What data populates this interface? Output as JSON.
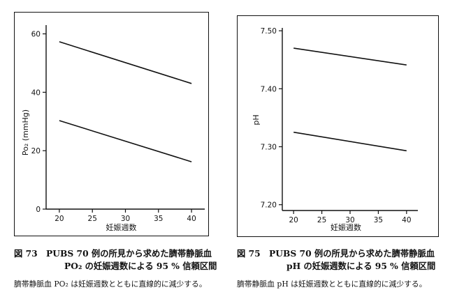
{
  "chart_data": [
    {
      "type": "line",
      "ylabel": "Po₂ (mmHg)",
      "xlabel": "妊娠週数",
      "x_ticks": [
        "20",
        "25",
        "30",
        "35",
        "40"
      ],
      "y_ticks": [
        "0",
        "20",
        "40",
        "60"
      ],
      "xlim": [
        18,
        42
      ],
      "ylim": [
        0,
        63
      ],
      "series": [
        {
          "x": [
            20,
            40
          ],
          "y": [
            57.3,
            43.0
          ]
        },
        {
          "x": [
            20,
            40
          ],
          "y": [
            30.3,
            16.2
          ]
        }
      ],
      "caption_line1": "図 73　PUBS 70 例の所見から求めた臍帯静脈血",
      "caption_line2": "PO₂ の妊娠週数による 95 % 信頼区間",
      "note": "臍帯静脈血 PO₂ は妊娠週数とともに直線的に減少する。"
    },
    {
      "type": "line",
      "ylabel": "pH",
      "xlabel": "妊娠週数",
      "x_ticks": [
        "20",
        "25",
        "30",
        "35",
        "40"
      ],
      "y_ticks": [
        "7.20",
        "7.30",
        "7.40",
        "7.50"
      ],
      "xlim": [
        18,
        42
      ],
      "ylim": [
        7.19,
        7.505
      ],
      "series": [
        {
          "x": [
            20,
            40
          ],
          "y": [
            7.47,
            7.441
          ]
        },
        {
          "x": [
            20,
            40
          ],
          "y": [
            7.325,
            7.293
          ]
        }
      ],
      "caption_line1": "図 75　PUBS 70 例の所見から求めた臍帯静脈血",
      "caption_line2": "pH の妊娠週数による 95 % 信頼区間",
      "note": "臍帯静脈血 pH は妊娠週数とともに直線的に減少する。"
    }
  ]
}
